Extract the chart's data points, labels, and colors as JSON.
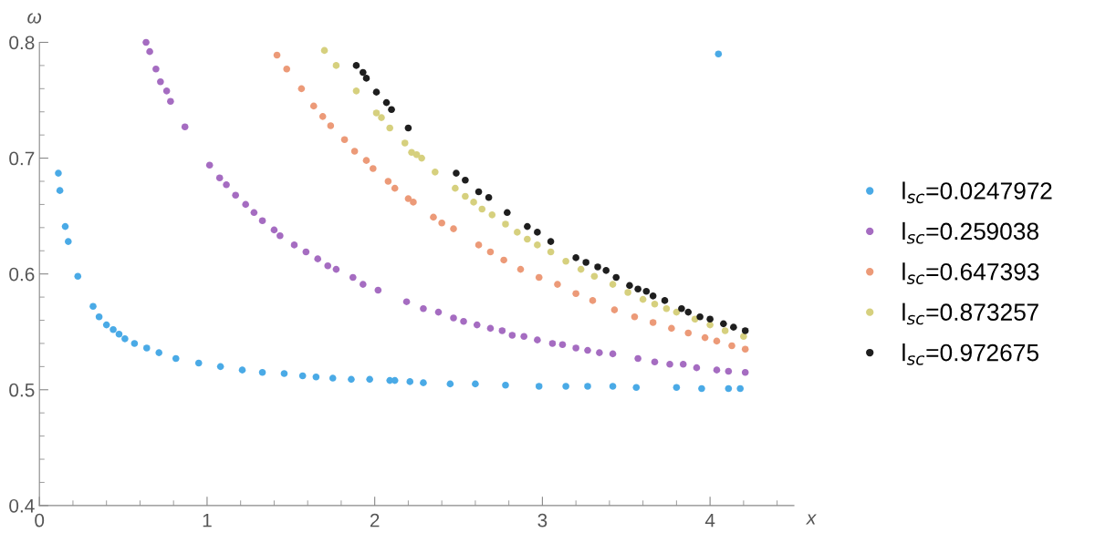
{
  "chart_data": {
    "type": "scatter",
    "xlabel": "x",
    "ylabel": "ω",
    "xlim": [
      0,
      4.5
    ],
    "ylim": [
      0.4,
      0.8
    ],
    "xticks": [
      0,
      1,
      2,
      3,
      4
    ],
    "yticks": [
      0.4,
      0.5,
      0.6,
      0.7,
      0.8
    ],
    "grid": false,
    "legend": "right",
    "marker": "circle",
    "series": [
      {
        "name": "l$_{sc}$=0.0247972",
        "color": "#4aaae6",
        "x": [
          0.113,
          0.122,
          0.154,
          0.172,
          0.229,
          0.32,
          0.356,
          0.4,
          0.44,
          0.475,
          0.51,
          0.567,
          0.64,
          0.713,
          0.814,
          0.95,
          1.08,
          1.21,
          1.33,
          1.46,
          1.57,
          1.65,
          1.75,
          1.86,
          1.97,
          2.09,
          2.12,
          2.21,
          2.29,
          2.45,
          2.6,
          2.78,
          2.98,
          3.14,
          3.27,
          3.42,
          3.56,
          3.8,
          3.95,
          4.05,
          4.11,
          4.18
        ],
        "values": [
          0.687,
          0.672,
          0.641,
          0.628,
          0.598,
          0.572,
          0.563,
          0.556,
          0.552,
          0.548,
          0.544,
          0.54,
          0.536,
          0.532,
          0.527,
          0.523,
          0.52,
          0.517,
          0.515,
          0.514,
          0.512,
          0.511,
          0.51,
          0.509,
          0.509,
          0.508,
          0.508,
          0.507,
          0.506,
          0.505,
          0.505,
          0.504,
          0.503,
          0.503,
          0.503,
          0.503,
          0.502,
          0.502,
          0.501,
          0.79,
          0.501,
          0.501
        ]
      },
      {
        "name": "l$_{sc}$=0.259038",
        "color": "#a56cc1",
        "x": [
          0.636,
          0.658,
          0.695,
          0.722,
          0.759,
          0.782,
          0.868,
          1.015,
          1.075,
          1.115,
          1.17,
          1.23,
          1.28,
          1.33,
          1.4,
          1.435,
          1.52,
          1.59,
          1.66,
          1.72,
          1.77,
          1.87,
          1.93,
          2.02,
          2.19,
          2.29,
          2.38,
          2.47,
          2.53,
          2.61,
          2.69,
          2.76,
          2.82,
          2.89,
          2.97,
          3.06,
          3.12,
          3.2,
          3.27,
          3.34,
          3.42,
          3.57,
          3.67,
          3.76,
          3.84,
          3.92,
          4.04,
          4.11,
          4.21
        ],
        "values": [
          0.8,
          0.792,
          0.777,
          0.766,
          0.758,
          0.749,
          0.727,
          0.694,
          0.683,
          0.677,
          0.668,
          0.66,
          0.653,
          0.646,
          0.638,
          0.633,
          0.625,
          0.619,
          0.613,
          0.607,
          0.604,
          0.597,
          0.591,
          0.586,
          0.576,
          0.57,
          0.567,
          0.562,
          0.559,
          0.556,
          0.553,
          0.551,
          0.547,
          0.546,
          0.543,
          0.54,
          0.539,
          0.536,
          0.534,
          0.532,
          0.531,
          0.527,
          0.524,
          0.522,
          0.522,
          0.519,
          0.517,
          0.516,
          0.515
        ]
      },
      {
        "name": "l$_{sc}$=0.647393",
        "color": "#ec9a78",
        "x": [
          1.417,
          1.475,
          1.563,
          1.636,
          1.69,
          1.737,
          1.82,
          1.88,
          1.95,
          1.99,
          2.08,
          2.12,
          2.2,
          2.23,
          2.35,
          2.4,
          2.47,
          2.62,
          2.69,
          2.77,
          2.87,
          2.98,
          3.09,
          3.2,
          3.3,
          3.43,
          3.55,
          3.66,
          3.77,
          3.87,
          3.97,
          4.04,
          4.13,
          4.21
        ],
        "values": [
          0.789,
          0.777,
          0.76,
          0.745,
          0.736,
          0.728,
          0.716,
          0.706,
          0.698,
          0.691,
          0.68,
          0.674,
          0.665,
          0.662,
          0.649,
          0.644,
          0.639,
          0.625,
          0.619,
          0.612,
          0.604,
          0.597,
          0.591,
          0.583,
          0.577,
          0.569,
          0.563,
          0.558,
          0.553,
          0.549,
          0.545,
          0.542,
          0.538,
          0.535
        ]
      },
      {
        "name": "l$_{sc}$=0.873257",
        "color": "#d6d07e",
        "x": [
          1.7,
          1.77,
          1.89,
          2.01,
          2.04,
          2.09,
          2.18,
          2.22,
          2.25,
          2.28,
          2.36,
          2.48,
          2.54,
          2.59,
          2.64,
          2.7,
          2.78,
          2.85,
          2.91,
          2.97,
          3.05,
          3.14,
          3.23,
          3.31,
          3.42,
          3.51,
          3.6,
          3.67,
          3.74,
          3.8,
          3.91,
          4.0,
          4.09,
          4.2
        ],
        "values": [
          0.793,
          0.78,
          0.758,
          0.739,
          0.735,
          0.726,
          0.713,
          0.705,
          0.703,
          0.7,
          0.688,
          0.674,
          0.667,
          0.662,
          0.656,
          0.651,
          0.643,
          0.636,
          0.63,
          0.625,
          0.619,
          0.611,
          0.604,
          0.598,
          0.591,
          0.584,
          0.578,
          0.574,
          0.57,
          0.567,
          0.561,
          0.556,
          0.551,
          0.546
        ]
      },
      {
        "name": "l$_{sc}$=0.972675",
        "color": "#1e1e1e",
        "x": [
          1.89,
          1.93,
          1.95,
          2.01,
          2.07,
          2.1,
          2.2,
          2.486,
          2.54,
          2.62,
          2.68,
          2.79,
          2.91,
          2.97,
          3.05,
          3.2,
          3.26,
          3.33,
          3.38,
          3.44,
          3.52,
          3.57,
          3.62,
          3.66,
          3.73,
          3.83,
          3.87,
          3.94,
          4.0,
          4.08,
          4.14,
          4.21
        ],
        "values": [
          0.78,
          0.774,
          0.769,
          0.757,
          0.748,
          0.742,
          0.726,
          0.687,
          0.681,
          0.671,
          0.666,
          0.653,
          0.641,
          0.636,
          0.628,
          0.614,
          0.61,
          0.606,
          0.603,
          0.597,
          0.59,
          0.587,
          0.585,
          0.581,
          0.577,
          0.57,
          0.567,
          0.563,
          0.561,
          0.557,
          0.554,
          0.551
        ]
      }
    ]
  }
}
